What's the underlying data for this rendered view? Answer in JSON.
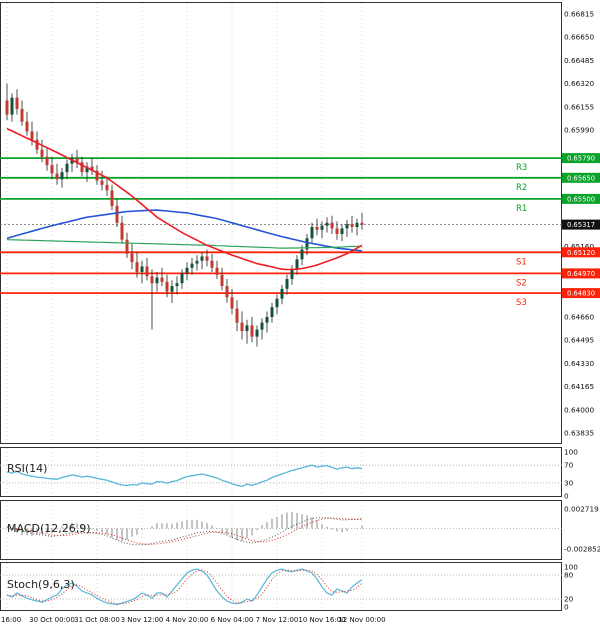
{
  "colors": {
    "up_candle": "#14523d",
    "down_candle": "#c43a2f",
    "wick": "#222222",
    "resistance": "#0aa32a",
    "support": "#fb2209",
    "last_price_bg": "#111111",
    "ma_red": "#ee1c25",
    "ma_blue": "#2456d6",
    "ma_green": "#2fa35c",
    "rsi_line": "#55b7d8",
    "stoch_k": "#55b7d8",
    "stoch_d": "#e02a20",
    "macd_line": "#555555",
    "macd_signal": "#e02a20",
    "grid": "#d9d9d9",
    "panel_border": "#333333",
    "axis_text": "#111111"
  },
  "chart_data": [
    {
      "type": "candlestick",
      "title": "",
      "timeframe_labels": [
        "16:00",
        "30 Oct 00:00",
        "31 Oct 08:00",
        "3 Nov 12:00",
        "4 Nov 20:00",
        "6 Nov 04:00",
        "7 Nov 12:00",
        "10 Nov 16:00",
        "12 Nov 00:00"
      ],
      "y_ticks": [
        0.66815,
        0.6665,
        0.66485,
        0.6632,
        0.66155,
        0.6599,
        0.6516,
        0.6466,
        0.64495,
        0.6433,
        0.64165,
        0.64,
        0.63835
      ],
      "ylim": [
        0.63835,
        0.66815
      ],
      "last_price": 0.65317,
      "levels": [
        {
          "label": "R3",
          "price": 0.6579,
          "kind": "resistance"
        },
        {
          "label": "R2",
          "price": 0.6565,
          "kind": "resistance"
        },
        {
          "label": "R1",
          "price": 0.655,
          "kind": "resistance"
        },
        {
          "label": "S1",
          "price": 0.6512,
          "kind": "support"
        },
        {
          "label": "S2",
          "price": 0.6497,
          "kind": "support"
        },
        {
          "label": "S3",
          "price": 0.6483,
          "kind": "support"
        }
      ],
      "candles_ohlc": [
        [
          0.662,
          0.6632,
          0.6606,
          0.661
        ],
        [
          0.661,
          0.6625,
          0.6605,
          0.6622
        ],
        [
          0.6622,
          0.6628,
          0.661,
          0.6614
        ],
        [
          0.6614,
          0.662,
          0.6602,
          0.6605
        ],
        [
          0.6605,
          0.6612,
          0.6595,
          0.6598
        ],
        [
          0.6598,
          0.6605,
          0.6588,
          0.6592
        ],
        [
          0.6592,
          0.6598,
          0.6582,
          0.6585
        ],
        [
          0.6585,
          0.6592,
          0.6576,
          0.658
        ],
        [
          0.658,
          0.6586,
          0.657,
          0.6574
        ],
        [
          0.6574,
          0.658,
          0.6564,
          0.6568
        ],
        [
          0.6568,
          0.6575,
          0.656,
          0.6564
        ],
        [
          0.6564,
          0.6572,
          0.6558,
          0.6569
        ],
        [
          0.6569,
          0.6578,
          0.6564,
          0.6575
        ],
        [
          0.6575,
          0.6582,
          0.6569,
          0.6579
        ],
        [
          0.6579,
          0.6585,
          0.6572,
          0.6576
        ],
        [
          0.6576,
          0.658,
          0.6566,
          0.6569
        ],
        [
          0.6569,
          0.6576,
          0.6562,
          0.6573
        ],
        [
          0.6573,
          0.6579,
          0.6567,
          0.657
        ],
        [
          0.657,
          0.6574,
          0.656,
          0.6563
        ],
        [
          0.6563,
          0.657,
          0.6556,
          0.656
        ],
        [
          0.656,
          0.6566,
          0.6552,
          0.6556
        ],
        [
          0.6556,
          0.656,
          0.6542,
          0.6545
        ],
        [
          0.6545,
          0.655,
          0.653,
          0.6533
        ],
        [
          0.6533,
          0.6538,
          0.6518,
          0.6521
        ],
        [
          0.6521,
          0.6526,
          0.6508,
          0.6511
        ],
        [
          0.6511,
          0.6518,
          0.65,
          0.6505
        ],
        [
          0.6505,
          0.6512,
          0.6494,
          0.6498
        ],
        [
          0.6498,
          0.6506,
          0.649,
          0.6502
        ],
        [
          0.6502,
          0.6508,
          0.6492,
          0.6495
        ],
        [
          0.6495,
          0.65,
          0.6457,
          0.649
        ],
        [
          0.649,
          0.6498,
          0.6484,
          0.6494
        ],
        [
          0.6494,
          0.6501,
          0.6488,
          0.6491
        ],
        [
          0.6491,
          0.6496,
          0.648,
          0.6484
        ],
        [
          0.6484,
          0.6492,
          0.6476,
          0.6488
        ],
        [
          0.6488,
          0.6495,
          0.6482,
          0.649
        ],
        [
          0.649,
          0.65,
          0.6486,
          0.6497
        ],
        [
          0.6497,
          0.6505,
          0.6492,
          0.6501
        ],
        [
          0.6501,
          0.6508,
          0.6496,
          0.6504
        ],
        [
          0.6504,
          0.651,
          0.6499,
          0.6506
        ],
        [
          0.6506,
          0.6512,
          0.65,
          0.6509
        ],
        [
          0.6509,
          0.6514,
          0.6502,
          0.6506
        ],
        [
          0.6506,
          0.6511,
          0.6498,
          0.6501
        ],
        [
          0.6501,
          0.6506,
          0.6493,
          0.6496
        ],
        [
          0.6496,
          0.6501,
          0.6485,
          0.6488
        ],
        [
          0.6488,
          0.6493,
          0.6476,
          0.648
        ],
        [
          0.648,
          0.6486,
          0.6468,
          0.6472
        ],
        [
          0.6472,
          0.6478,
          0.6456,
          0.6462
        ],
        [
          0.6462,
          0.647,
          0.645,
          0.6456
        ],
        [
          0.6456,
          0.6464,
          0.6447,
          0.646
        ],
        [
          0.646,
          0.6466,
          0.6448,
          0.6452
        ],
        [
          0.6452,
          0.646,
          0.6445,
          0.6457
        ],
        [
          0.6457,
          0.6465,
          0.645,
          0.6462
        ],
        [
          0.6462,
          0.647,
          0.6455,
          0.6466
        ],
        [
          0.6466,
          0.6476,
          0.6462,
          0.6473
        ],
        [
          0.6473,
          0.6482,
          0.6468,
          0.6479
        ],
        [
          0.6479,
          0.6489,
          0.6475,
          0.6486
        ],
        [
          0.6486,
          0.6496,
          0.6482,
          0.6493
        ],
        [
          0.6493,
          0.6503,
          0.6489,
          0.65
        ],
        [
          0.65,
          0.651,
          0.6496,
          0.6507
        ],
        [
          0.6507,
          0.6517,
          0.6503,
          0.6514
        ],
        [
          0.6514,
          0.6525,
          0.651,
          0.6522
        ],
        [
          0.6522,
          0.6533,
          0.6518,
          0.653
        ],
        [
          0.653,
          0.6536,
          0.6524,
          0.6528
        ],
        [
          0.6528,
          0.6534,
          0.6522,
          0.6531
        ],
        [
          0.6531,
          0.6537,
          0.6526,
          0.6533
        ],
        [
          0.6533,
          0.6538,
          0.6525,
          0.6529
        ],
        [
          0.6529,
          0.6534,
          0.6521,
          0.6525
        ],
        [
          0.6525,
          0.6532,
          0.652,
          0.6529
        ],
        [
          0.6529,
          0.6535,
          0.6523,
          0.6532
        ],
        [
          0.6532,
          0.6538,
          0.6526,
          0.653
        ],
        [
          0.653,
          0.6536,
          0.6524,
          0.6533
        ],
        [
          0.6533,
          0.654,
          0.6528,
          0.65317
        ]
      ],
      "overlays": {
        "ma_red": [
          0.66,
          0.65983,
          0.65966,
          0.65949,
          0.65932,
          0.65915,
          0.65898,
          0.65881,
          0.65864,
          0.65847,
          0.6583,
          0.65812,
          0.65794,
          0.65776,
          0.65758,
          0.6574,
          0.65722,
          0.65704,
          0.65686,
          0.65668,
          0.6565,
          0.65624,
          0.65598,
          0.65572,
          0.65546,
          0.6552,
          0.6549,
          0.6546,
          0.6543,
          0.654,
          0.6537,
          0.65348,
          0.65326,
          0.65304,
          0.65282,
          0.6526,
          0.65242,
          0.65224,
          0.65206,
          0.65188,
          0.6517,
          0.65156,
          0.65142,
          0.65128,
          0.65114,
          0.651,
          0.65088,
          0.65076,
          0.65064,
          0.65052,
          0.6504,
          0.65032,
          0.65024,
          0.65016,
          0.65008,
          0.65,
          0.64998,
          0.64998,
          0.65,
          0.65005,
          0.65012,
          0.6502,
          0.6503,
          0.65042,
          0.65055,
          0.65068,
          0.6508,
          0.65095,
          0.6511,
          0.6513,
          0.6515,
          0.6517
        ],
        "ma_blue": [
          0.6522,
          0.6523,
          0.6524,
          0.6525,
          0.6526,
          0.6527,
          0.6528,
          0.6529,
          0.653,
          0.65309,
          0.65318,
          0.65327,
          0.65335,
          0.65344,
          0.65353,
          0.65362,
          0.6537,
          0.65375,
          0.6538,
          0.65385,
          0.6539,
          0.65395,
          0.654,
          0.65405,
          0.6541,
          0.65412,
          0.65414,
          0.65416,
          0.65418,
          0.65419,
          0.6542,
          0.65417,
          0.65414,
          0.6541,
          0.65407,
          0.65404,
          0.654,
          0.65393,
          0.65387,
          0.6538,
          0.65373,
          0.65367,
          0.6536,
          0.6535,
          0.6534,
          0.6533,
          0.6532,
          0.6531,
          0.653,
          0.6529,
          0.6528,
          0.6527,
          0.6526,
          0.6525,
          0.6524,
          0.65232,
          0.65223,
          0.65215,
          0.65207,
          0.65198,
          0.6519,
          0.65183,
          0.65177,
          0.6517,
          0.65163,
          0.65157,
          0.6515,
          0.65146,
          0.65142,
          0.65138,
          0.65134,
          0.6513
        ],
        "ma_green": [
          0.6521,
          0.65209,
          0.65208,
          0.65207,
          0.65206,
          0.65205,
          0.65204,
          0.65203,
          0.65202,
          0.65201,
          0.652,
          0.65199,
          0.65198,
          0.65197,
          0.65196,
          0.65195,
          0.65194,
          0.65193,
          0.65192,
          0.65191,
          0.6519,
          0.65189,
          0.65188,
          0.65187,
          0.65186,
          0.65185,
          0.65184,
          0.65183,
          0.65182,
          0.65181,
          0.6518,
          0.65179,
          0.65178,
          0.65177,
          0.65176,
          0.65175,
          0.65174,
          0.65173,
          0.65172,
          0.65171,
          0.6517,
          0.65169,
          0.65167,
          0.65166,
          0.65165,
          0.65163,
          0.65162,
          0.65161,
          0.65159,
          0.65158,
          0.65157,
          0.65155,
          0.65154,
          0.65153,
          0.65151,
          0.6515,
          0.6515,
          0.65151,
          0.65151,
          0.65152,
          0.65152,
          0.65153,
          0.65153,
          0.65154,
          0.65154,
          0.65155,
          0.65157,
          0.65158,
          0.6516,
          0.65162,
          0.65163,
          0.65165
        ]
      }
    },
    {
      "type": "line",
      "name": "RSI(14)",
      "y_ticks": [
        100,
        70,
        30,
        0
      ],
      "ylim": [
        0,
        100
      ],
      "values": [
        55,
        52,
        56,
        50,
        47,
        45,
        43,
        42,
        40,
        39,
        38,
        42,
        45,
        48,
        46,
        43,
        45,
        43,
        40,
        38,
        36,
        32,
        28,
        25,
        24,
        26,
        25,
        30,
        28,
        27,
        33,
        32,
        29,
        33,
        35,
        40,
        44,
        46,
        48,
        50,
        47,
        44,
        41,
        36,
        32,
        28,
        24,
        22,
        27,
        24,
        28,
        32,
        36,
        42,
        46,
        50,
        54,
        58,
        61,
        64,
        67,
        70,
        66,
        68,
        69,
        65,
        61,
        64,
        66,
        62,
        64,
        62
      ]
    },
    {
      "type": "line",
      "name": "MACD(12,26,9)",
      "y_labels": [
        "0.002719",
        "-0.002852"
      ],
      "ylim": [
        -0.002852,
        0.002719
      ],
      "values": [
        0.0002,
        0.0,
        -0.0002,
        -0.0004,
        -0.0005,
        -0.0007,
        -0.0008,
        -0.0009,
        -0.001,
        -0.0011,
        -0.001,
        -0.0009,
        -0.0007,
        -0.0006,
        -0.0005,
        -0.0005,
        -0.0006,
        -0.0006,
        -0.0007,
        -0.0008,
        -0.001,
        -0.0013,
        -0.0016,
        -0.0019,
        -0.0021,
        -0.0022,
        -0.0023,
        -0.0022,
        -0.0022,
        -0.0021,
        -0.0019,
        -0.0018,
        -0.0017,
        -0.0016,
        -0.0014,
        -0.0012,
        -0.001,
        -0.0008,
        -0.0006,
        -0.0005,
        -0.0004,
        -0.0004,
        -0.0005,
        -0.0007,
        -0.0009,
        -0.0012,
        -0.0015,
        -0.0018,
        -0.0019,
        -0.002,
        -0.0019,
        -0.0017,
        -0.0015,
        -0.0012,
        -0.0009,
        -0.0005,
        -0.0001,
        0.0003,
        0.0006,
        0.0009,
        0.0012,
        0.0014,
        0.0015,
        0.0015,
        0.0015,
        0.0014,
        0.0013,
        0.0012,
        0.0012,
        0.0013,
        0.0013,
        0.0014
      ]
    },
    {
      "type": "line",
      "name": "Stoch(9,6,3)",
      "y_ticks": [
        100,
        80,
        20,
        0
      ],
      "ylim": [
        0,
        100
      ],
      "values": [
        30,
        25,
        35,
        28,
        22,
        18,
        15,
        12,
        18,
        25,
        30,
        45,
        55,
        60,
        52,
        40,
        35,
        30,
        22,
        15,
        10,
        8,
        6,
        10,
        14,
        18,
        25,
        35,
        30,
        22,
        35,
        35,
        25,
        40,
        55,
        70,
        85,
        92,
        95,
        90,
        80,
        60,
        40,
        25,
        15,
        10,
        8,
        12,
        20,
        15,
        30,
        50,
        70,
        85,
        92,
        95,
        90,
        88,
        92,
        95,
        90,
        85,
        70,
        50,
        35,
        30,
        45,
        40,
        35,
        50,
        60,
        68
      ]
    }
  ]
}
